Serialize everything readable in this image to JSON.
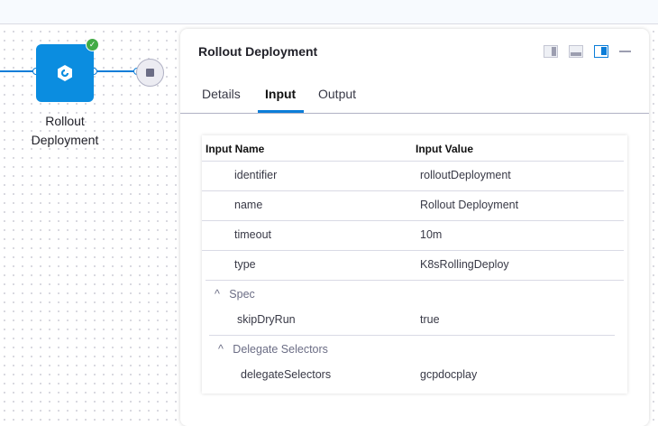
{
  "node": {
    "label": "Rollout Deployment",
    "status": "success"
  },
  "panel": {
    "title": "Rollout Deployment",
    "tabs": [
      {
        "label": "Details"
      },
      {
        "label": "Input"
      },
      {
        "label": "Output"
      }
    ],
    "active_tab": "Input"
  },
  "table": {
    "headers": {
      "name": "Input Name",
      "value": "Input Value"
    },
    "rows": [
      {
        "name": "identifier",
        "value": "rolloutDeployment"
      },
      {
        "name": "name",
        "value": "Rollout Deployment"
      },
      {
        "name": "timeout",
        "value": "10m"
      },
      {
        "name": "type",
        "value": "K8sRollingDeploy"
      }
    ],
    "groups": [
      {
        "label": "Spec",
        "rows": [
          {
            "name": "skipDryRun",
            "value": "true"
          }
        ]
      },
      {
        "label": "Delegate Selectors",
        "rows": [
          {
            "name": "delegateSelectors",
            "value": "gcpdocplay"
          }
        ]
      }
    ]
  },
  "colors": {
    "accent": "#0b7dd8",
    "node": "#0b8de0",
    "success": "#42ab45"
  }
}
